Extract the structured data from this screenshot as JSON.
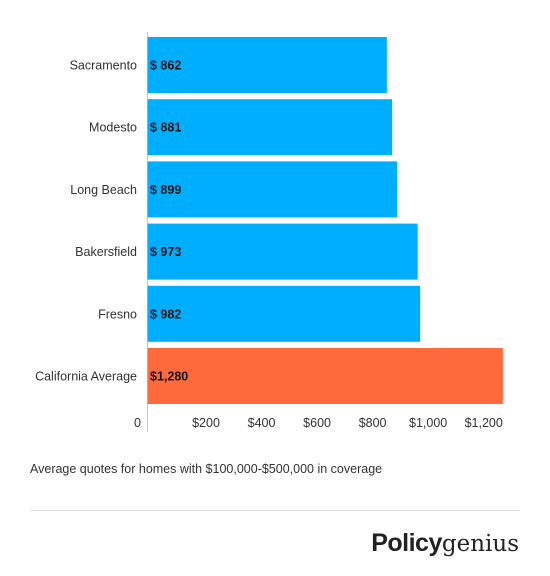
{
  "chart_data": {
    "type": "bar",
    "orientation": "horizontal",
    "categories": [
      "Sacramento",
      "Modesto",
      "Long Beach",
      "Bakersfield",
      "Fresno",
      "California Average"
    ],
    "values": [
      862,
      881,
      899,
      973,
      982,
      1280
    ],
    "value_labels": [
      "$ 862",
      "$ 881",
      "$ 899",
      "$ 973",
      "$ 982",
      "$1,280"
    ],
    "colors": [
      "#00aeff",
      "#00aeff",
      "#00aeff",
      "#00aeff",
      "#00aeff",
      "#ff6a3d"
    ],
    "x_ticks": [
      "0",
      "$200",
      "$400",
      "$600",
      "$800",
      "$1,000",
      "$1,200"
    ],
    "xlim": [
      0,
      1320
    ],
    "grid": false,
    "title": "",
    "xlabel": "",
    "ylabel": ""
  },
  "caption": "Average quotes for homes with $100,000-$500,000 in coverage",
  "logo": {
    "part1": "Policy",
    "part2": "genius"
  }
}
